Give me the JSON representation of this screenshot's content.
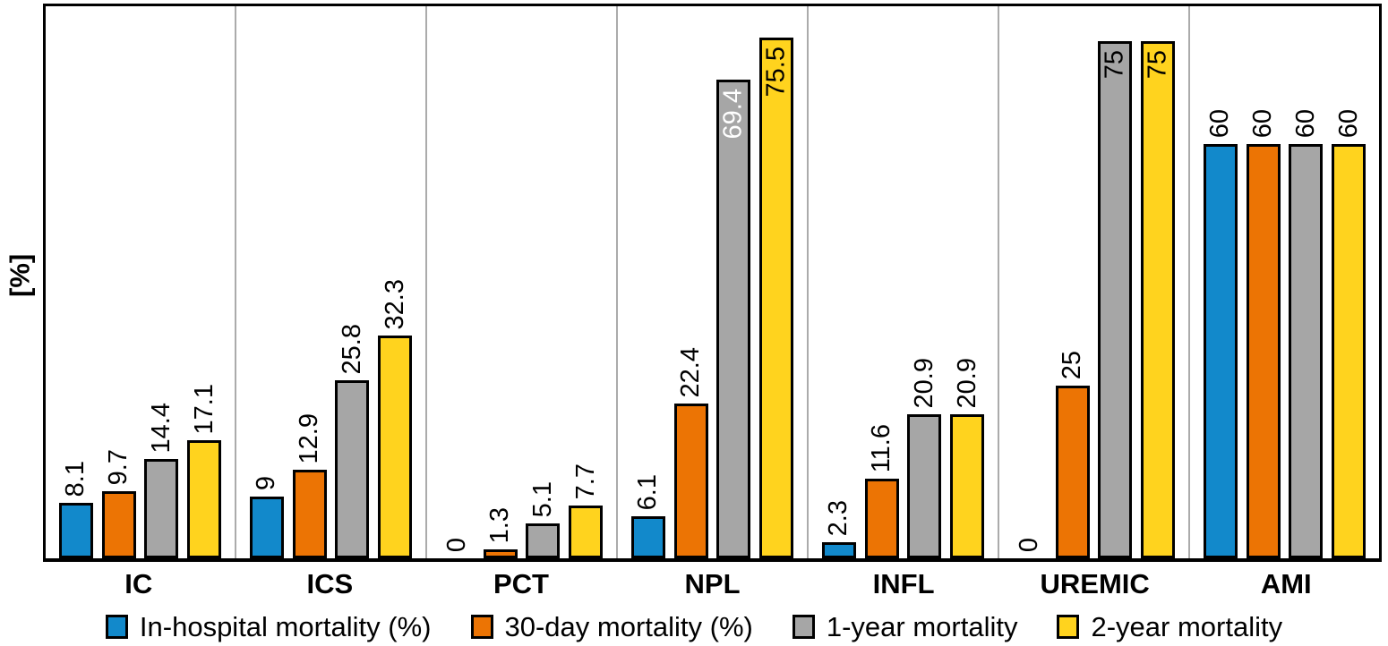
{
  "chart_data": {
    "type": "bar",
    "title": "",
    "xlabel": "",
    "ylabel": "[%]",
    "ylim": [
      0,
      80
    ],
    "grid": "vertical-separators-between-groups",
    "legend_position": "bottom-center",
    "bar_value_label_rotation": -90,
    "categories": [
      "IC",
      "ICS",
      "PCT",
      "NPL",
      "INFL",
      "UREMIC",
      "AMI"
    ],
    "series": [
      {
        "name": "In-hospital mortality (%)",
        "color": "#1289CB",
        "values": [
          8.1,
          9,
          0,
          6.1,
          2.3,
          0,
          60
        ]
      },
      {
        "name": "30-day mortality (%)",
        "color": "#EC7404",
        "values": [
          9.7,
          12.9,
          1.3,
          22.4,
          11.6,
          25,
          60
        ]
      },
      {
        "name": "1-year mortality",
        "color": "#A6A6A6",
        "values": [
          14.4,
          25.8,
          5.1,
          69.4,
          20.9,
          75,
          60
        ]
      },
      {
        "name": "2-year mortality",
        "color": "#FFD31E",
        "values": [
          17.1,
          32.3,
          7.7,
          75.5,
          20.9,
          75,
          60
        ]
      }
    ],
    "inside_labels": [
      {
        "category": "NPL",
        "series": "1-year mortality",
        "text_color": "#FFFFFF"
      },
      {
        "category": "NPL",
        "series": "2-year mortality",
        "text_color": "#000000"
      },
      {
        "category": "UREMIC",
        "series": "1-year mortality",
        "text_color": "#000000"
      },
      {
        "category": "UREMIC",
        "series": "2-year mortality",
        "text_color": "#000000"
      }
    ]
  },
  "colors": {
    "background": "#FFFFFF",
    "bar_border": "#000000",
    "axis": "#000000",
    "group_separator": "#ABABAB",
    "value_label": "#000000"
  }
}
